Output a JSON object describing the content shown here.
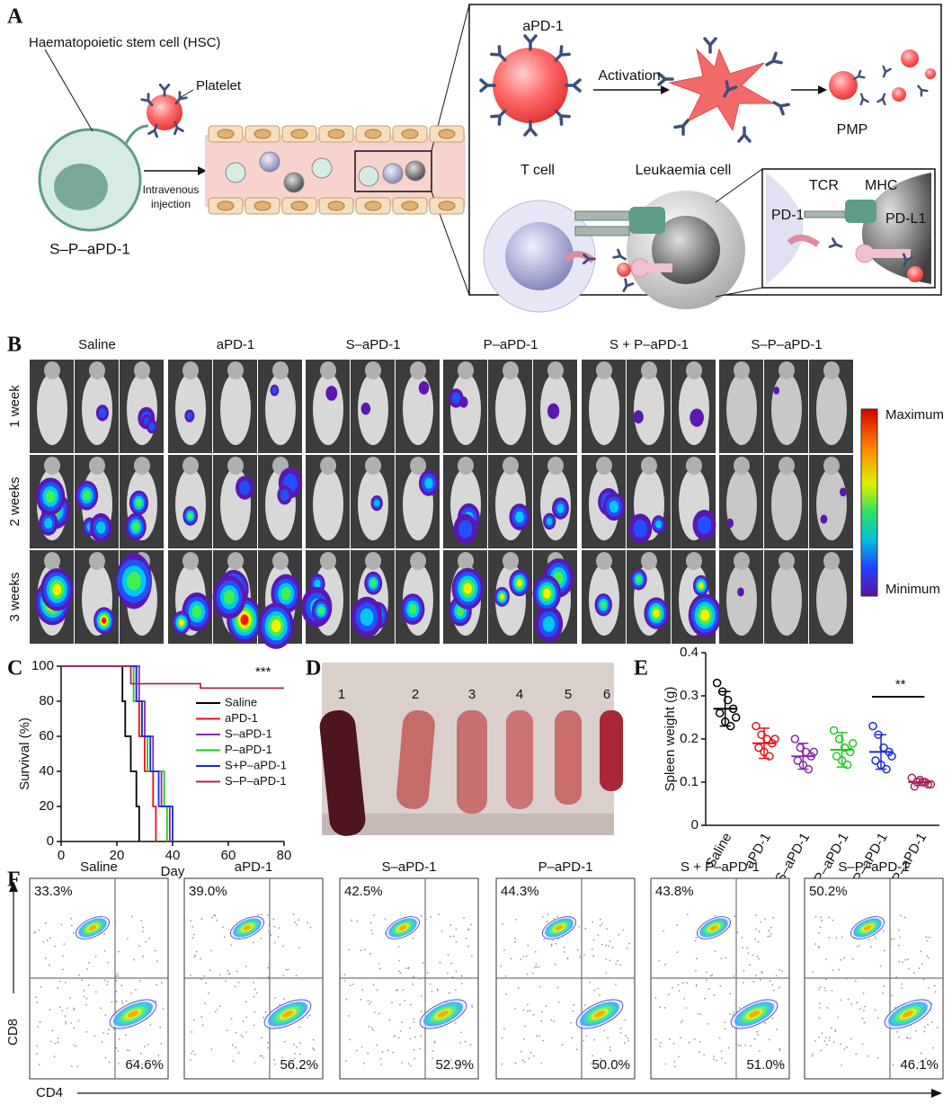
{
  "figure": {
    "panel_labels": [
      "A",
      "B",
      "C",
      "D",
      "E",
      "F"
    ],
    "a": {
      "hsc": "Haematopoietic stem cell (HSC)",
      "platelet": "Platelet",
      "injection": [
        "Intravenous",
        "injection"
      ],
      "conjugate": "S–P–aPD-1",
      "apd1": "aPD-1",
      "activation": "Activation",
      "pmp": "PMP",
      "tcell": "T cell",
      "leukaemia": "Leukaemia cell",
      "tcr": "TCR",
      "mhc": "MHC",
      "pd1": "PD-1",
      "pdl1": "PD-L1"
    },
    "b": {
      "groups": [
        "Saline",
        "aPD-1",
        "S–aPD-1",
        "P–aPD-1",
        "S + P–aPD-1",
        "S–P–aPD-1"
      ],
      "rows": [
        "1 week",
        "2 weeks",
        "3 weeks"
      ],
      "scale": [
        "Maximum",
        "Minimum"
      ]
    },
    "d": {
      "labels": [
        "1",
        "2",
        "3",
        "4",
        "5",
        "6"
      ]
    },
    "f": {
      "groups": [
        "Saline",
        "aPD-1",
        "S–aPD-1",
        "P–aPD-1",
        "S + P–aPD-1",
        "S–P–aPD-1"
      ],
      "cd8_pct": [
        "33.3%",
        "39.0%",
        "42.5%",
        "44.3%",
        "43.8%",
        "50.2%"
      ],
      "cd4_pct": [
        "64.6%",
        "56.2%",
        "52.9%",
        "50.0%",
        "51.0%",
        "46.1%"
      ],
      "y_label": "CD8",
      "x_label": "CD4"
    }
  },
  "chart_data": [
    {
      "type": "line",
      "step": true,
      "xlabel": "Day",
      "ylabel": "Survival (%)",
      "annotation": "***",
      "xlim": [
        0,
        80
      ],
      "ylim": [
        0,
        100
      ],
      "xticks": [
        0,
        20,
        40,
        60,
        80
      ],
      "yticks": [
        0,
        20,
        40,
        60,
        80,
        100
      ],
      "series": [
        {
          "name": "Saline",
          "color": "#000000",
          "x": [
            0,
            22,
            23,
            25,
            27,
            28
          ],
          "values": [
            100,
            80,
            60,
            40,
            20,
            0
          ]
        },
        {
          "name": "aPD-1",
          "color": "#e8101a",
          "x": [
            0,
            27,
            28,
            30,
            33,
            34
          ],
          "values": [
            100,
            80,
            60,
            40,
            20,
            0
          ]
        },
        {
          "name": "S–aPD-1",
          "color": "#8a2aa8",
          "x": [
            0,
            28,
            30,
            33,
            36,
            39
          ],
          "values": [
            100,
            80,
            60,
            40,
            20,
            0
          ]
        },
        {
          "name": "P–aPD-1",
          "color": "#22c822",
          "x": [
            0,
            26,
            29,
            31,
            37,
            38
          ],
          "values": [
            100,
            80,
            60,
            40,
            20,
            0
          ]
        },
        {
          "name": "S+P–aPD-1",
          "color": "#1a2ae0",
          "x": [
            0,
            27,
            29,
            32,
            35,
            40
          ],
          "values": [
            100,
            80,
            60,
            40,
            20,
            0
          ]
        },
        {
          "name": "S–P–aPD-1",
          "color": "#a8275a",
          "x": [
            0,
            25,
            50,
            80
          ],
          "values": [
            100,
            90,
            87.5,
            87.5
          ]
        }
      ]
    },
    {
      "type": "dot",
      "ylabel": "Spleen weight (g)",
      "annotation": "**",
      "ylim": [
        0,
        0.4
      ],
      "yticks": [
        0,
        0.1,
        0.2,
        0.3,
        0.4
      ],
      "categories": [
        "Saline",
        "aPD-1",
        "S–aPD-1",
        "P–aPD-1",
        "S+P–aPD-1",
        "S–P–aPD-1"
      ],
      "colors": [
        "#000000",
        "#e8101a",
        "#8a2aa8",
        "#22c822",
        "#1a2ae0",
        "#a8275a"
      ],
      "values": [
        0.27,
        0.19,
        0.16,
        0.175,
        0.17,
        0.1
      ],
      "errors": [
        0.04,
        0.035,
        0.03,
        0.04,
        0.04,
        0.008
      ],
      "points": [
        [
          0.33,
          0.31,
          0.29,
          0.27,
          0.26,
          0.24,
          0.23,
          0.25
        ],
        [
          0.23,
          0.21,
          0.2,
          0.19,
          0.18,
          0.17,
          0.16,
          0.2
        ],
        [
          0.2,
          0.18,
          0.17,
          0.16,
          0.15,
          0.14,
          0.13,
          0.17
        ],
        [
          0.22,
          0.2,
          0.18,
          0.17,
          0.16,
          0.15,
          0.14,
          0.19
        ],
        [
          0.23,
          0.21,
          0.18,
          0.17,
          0.15,
          0.14,
          0.13,
          0.16
        ],
        [
          0.11,
          0.1,
          0.1,
          0.095,
          0.09,
          0.105,
          0.1,
          0.095
        ]
      ]
    }
  ]
}
